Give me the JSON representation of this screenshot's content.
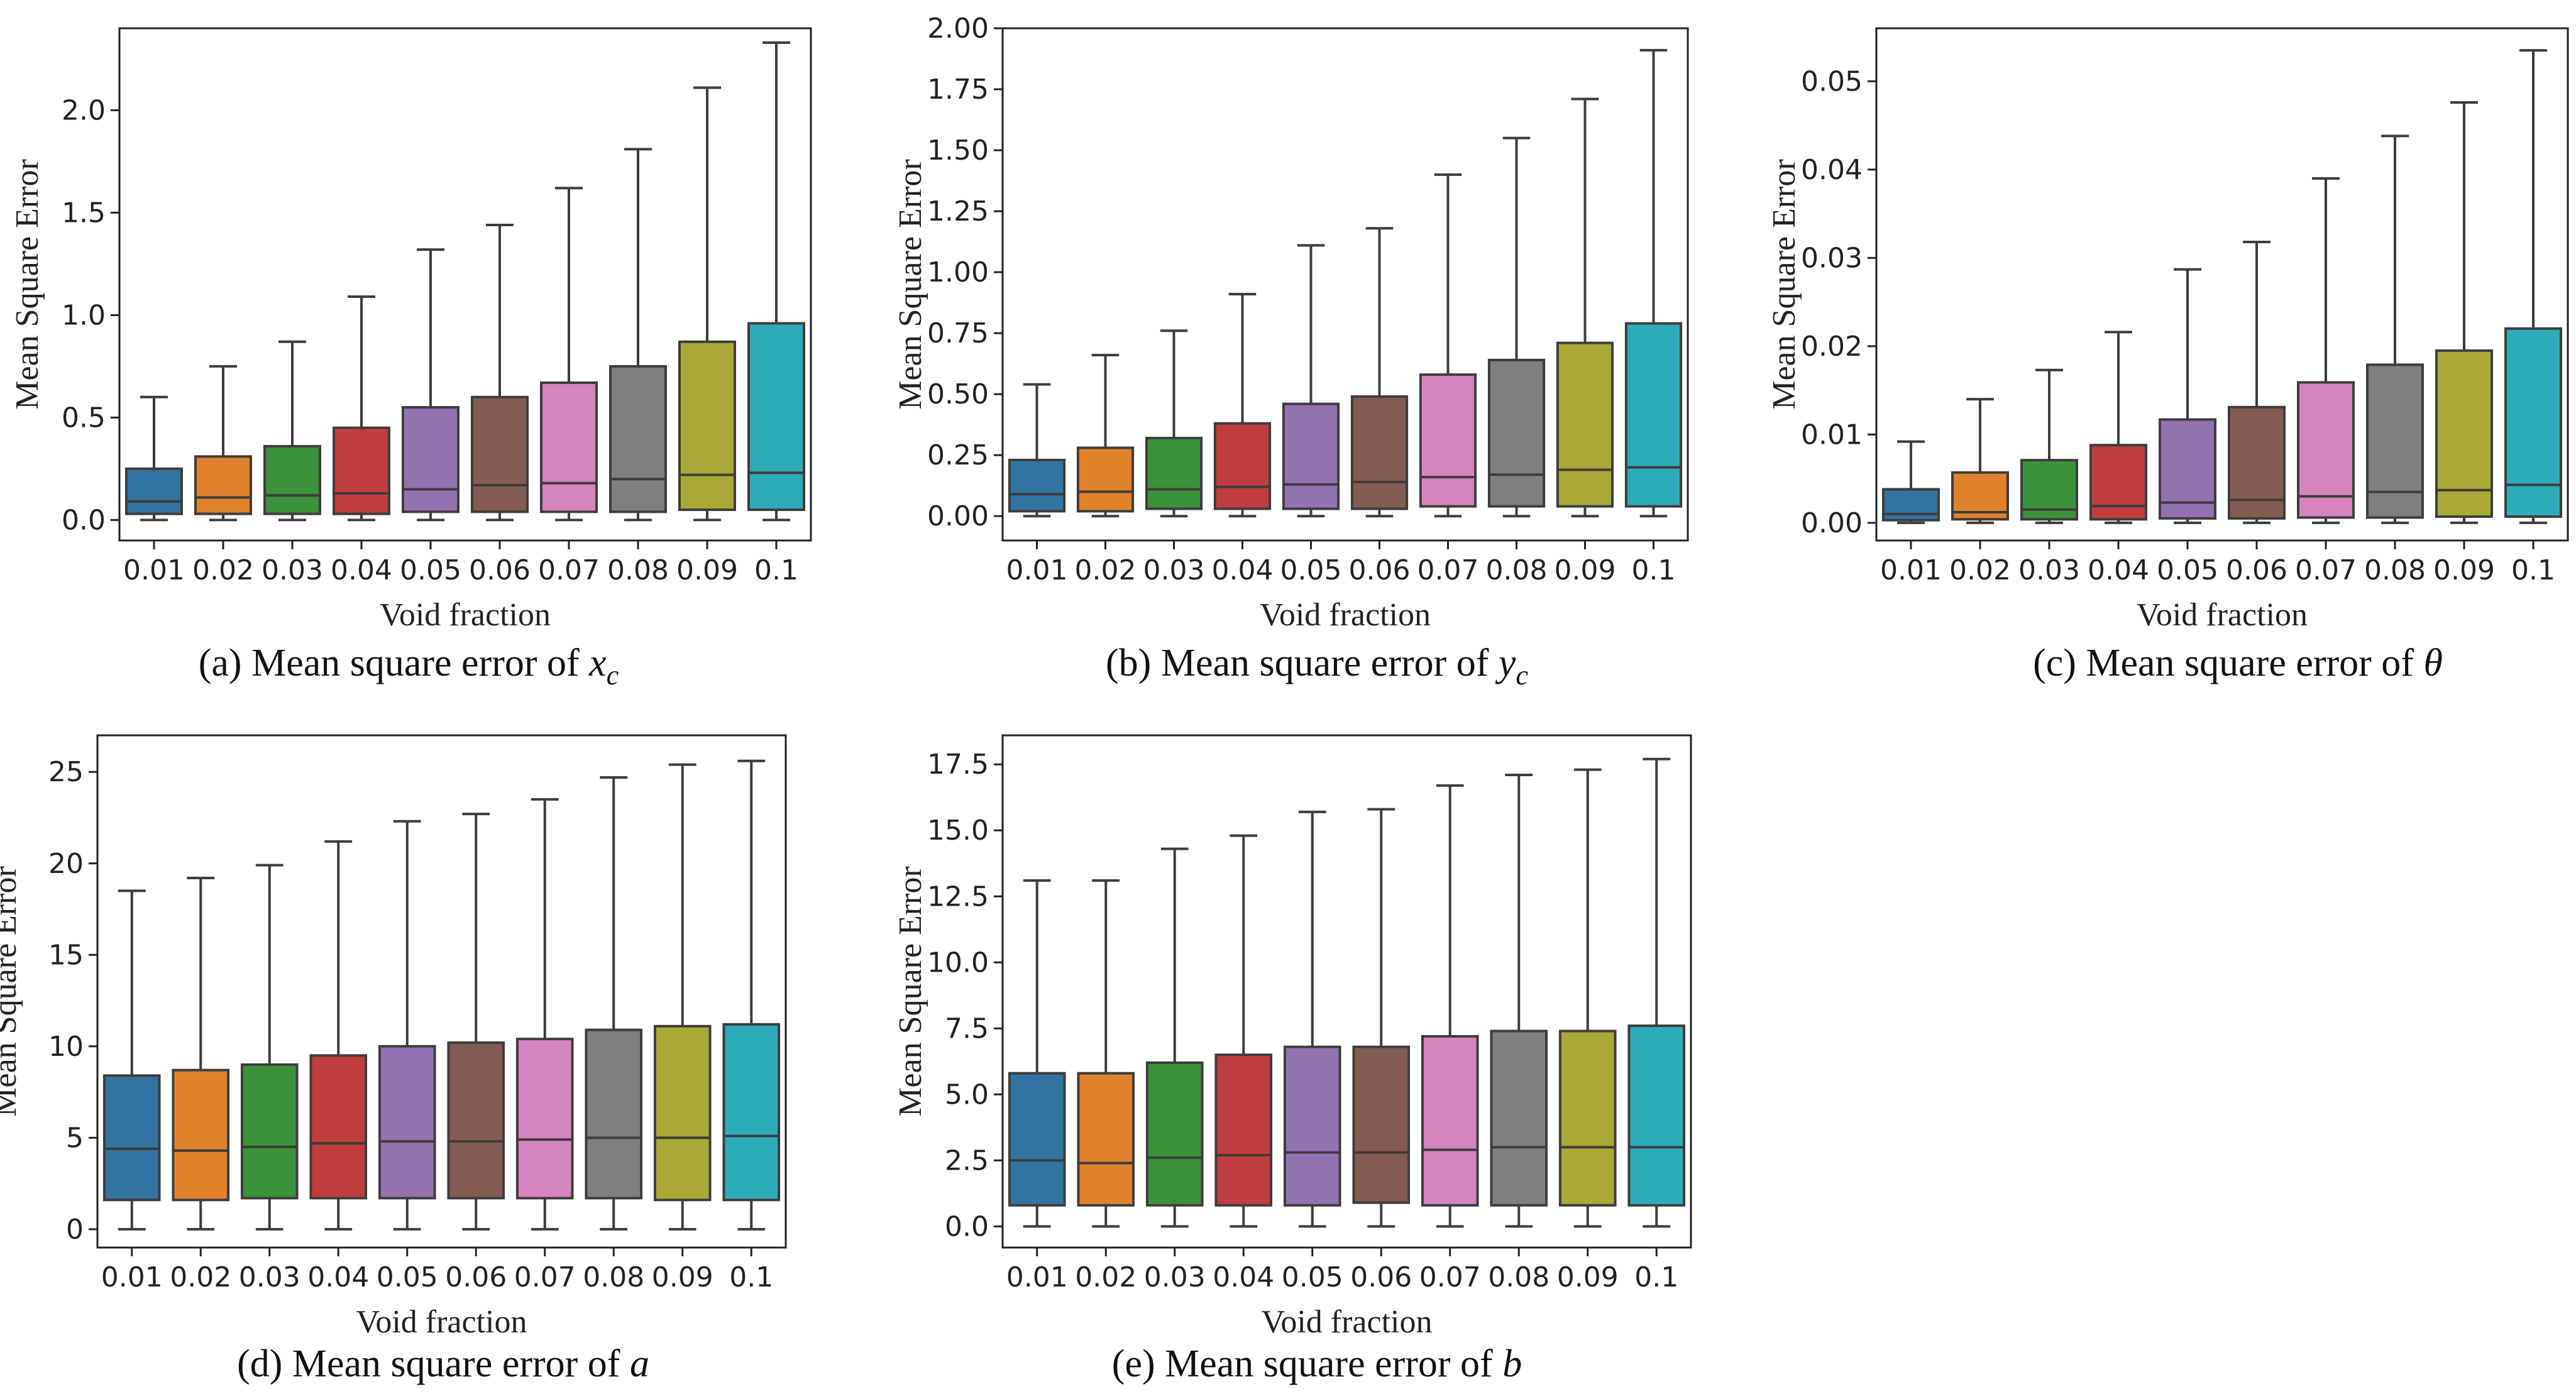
{
  "figure": {
    "categories_label": "Void fraction",
    "y_label_default": "Mean Square Error",
    "palette": [
      "#3274a1",
      "#e1812c",
      "#3a923a",
      "#c03d3e",
      "#9372b2",
      "#845b53",
      "#d684bd",
      "#7f7f7f",
      "#a9aa35",
      "#2eabb8"
    ]
  },
  "chart_data": [
    {
      "type": "box",
      "title": "",
      "caption_prefix": "(a) Mean square error of ",
      "caption_var": "x",
      "caption_sub": "c",
      "xlabel": "Void fraction",
      "ylabel": "Mean Square Error",
      "categories": [
        "0.01",
        "0.02",
        "0.03",
        "0.04",
        "0.05",
        "0.06",
        "0.07",
        "0.08",
        "0.09",
        "0.1"
      ],
      "ylim": [
        -0.1,
        2.4
      ],
      "yticks": [
        0.0,
        0.5,
        1.0,
        1.5,
        2.0
      ],
      "ytick_labels": [
        "0.0",
        "0.5",
        "1.0",
        "1.5",
        "2.0"
      ],
      "boxes": [
        {
          "min": 0.0,
          "q1": 0.03,
          "median": 0.09,
          "q3": 0.25,
          "max": 0.6
        },
        {
          "min": 0.0,
          "q1": 0.03,
          "median": 0.11,
          "q3": 0.31,
          "max": 0.75
        },
        {
          "min": 0.0,
          "q1": 0.03,
          "median": 0.12,
          "q3": 0.36,
          "max": 0.87
        },
        {
          "min": 0.0,
          "q1": 0.03,
          "median": 0.13,
          "q3": 0.45,
          "max": 1.09
        },
        {
          "min": 0.0,
          "q1": 0.04,
          "median": 0.15,
          "q3": 0.55,
          "max": 1.32
        },
        {
          "min": 0.0,
          "q1": 0.04,
          "median": 0.17,
          "q3": 0.6,
          "max": 1.44
        },
        {
          "min": 0.0,
          "q1": 0.04,
          "median": 0.18,
          "q3": 0.67,
          "max": 1.62
        },
        {
          "min": 0.0,
          "q1": 0.04,
          "median": 0.2,
          "q3": 0.75,
          "max": 1.81
        },
        {
          "min": 0.0,
          "q1": 0.05,
          "median": 0.22,
          "q3": 0.87,
          "max": 2.11
        },
        {
          "min": 0.0,
          "q1": 0.05,
          "median": 0.23,
          "q3": 0.96,
          "max": 2.33
        }
      ]
    },
    {
      "type": "box",
      "title": "",
      "caption_prefix": "(b) Mean square error of ",
      "caption_var": "y",
      "caption_sub": "c",
      "xlabel": "Void fraction",
      "ylabel": "Mean Square Error",
      "categories": [
        "0.01",
        "0.02",
        "0.03",
        "0.04",
        "0.05",
        "0.06",
        "0.07",
        "0.08",
        "0.09",
        "0.1"
      ],
      "ylim": [
        -0.1,
        2.0
      ],
      "yticks": [
        0.0,
        0.25,
        0.5,
        0.75,
        1.0,
        1.25,
        1.5,
        1.75,
        2.0
      ],
      "ytick_labels": [
        "0.00",
        "0.25",
        "0.50",
        "0.75",
        "1.00",
        "1.25",
        "1.50",
        "1.75",
        "2.00"
      ],
      "boxes": [
        {
          "min": 0.0,
          "q1": 0.02,
          "median": 0.09,
          "q3": 0.23,
          "max": 0.54
        },
        {
          "min": 0.0,
          "q1": 0.02,
          "median": 0.1,
          "q3": 0.28,
          "max": 0.66
        },
        {
          "min": 0.0,
          "q1": 0.03,
          "median": 0.11,
          "q3": 0.32,
          "max": 0.76
        },
        {
          "min": 0.0,
          "q1": 0.03,
          "median": 0.12,
          "q3": 0.38,
          "max": 0.91
        },
        {
          "min": 0.0,
          "q1": 0.03,
          "median": 0.13,
          "q3": 0.46,
          "max": 1.11
        },
        {
          "min": 0.0,
          "q1": 0.03,
          "median": 0.14,
          "q3": 0.49,
          "max": 1.18
        },
        {
          "min": 0.0,
          "q1": 0.04,
          "median": 0.16,
          "q3": 0.58,
          "max": 1.4
        },
        {
          "min": 0.0,
          "q1": 0.04,
          "median": 0.17,
          "q3": 0.64,
          "max": 1.55
        },
        {
          "min": 0.0,
          "q1": 0.04,
          "median": 0.19,
          "q3": 0.71,
          "max": 1.71
        },
        {
          "min": 0.0,
          "q1": 0.04,
          "median": 0.2,
          "q3": 0.79,
          "max": 1.91
        }
      ]
    },
    {
      "type": "box",
      "title": "",
      "caption_prefix": "(c) Mean square error of ",
      "caption_var": "θ",
      "caption_sub": "",
      "xlabel": "Void fraction",
      "ylabel": "Mean Square Error",
      "categories": [
        "0.01",
        "0.02",
        "0.03",
        "0.04",
        "0.05",
        "0.06",
        "0.07",
        "0.08",
        "0.09",
        "0.1"
      ],
      "ylim": [
        -0.002,
        0.056
      ],
      "yticks": [
        0.0,
        0.01,
        0.02,
        0.03,
        0.04,
        0.05
      ],
      "ytick_labels": [
        "0.00",
        "0.01",
        "0.02",
        "0.03",
        "0.04",
        "0.05"
      ],
      "boxes": [
        {
          "min": 0.0,
          "q1": 0.0003,
          "median": 0.001,
          "q3": 0.0038,
          "max": 0.0092
        },
        {
          "min": 0.0,
          "q1": 0.0004,
          "median": 0.0012,
          "q3": 0.0057,
          "max": 0.014
        },
        {
          "min": 0.0,
          "q1": 0.0004,
          "median": 0.0015,
          "q3": 0.0071,
          "max": 0.0173
        },
        {
          "min": 0.0,
          "q1": 0.0004,
          "median": 0.0019,
          "q3": 0.0088,
          "max": 0.0216
        },
        {
          "min": 0.0,
          "q1": 0.0005,
          "median": 0.0023,
          "q3": 0.0117,
          "max": 0.0287
        },
        {
          "min": 0.0,
          "q1": 0.0005,
          "median": 0.0026,
          "q3": 0.0131,
          "max": 0.0318
        },
        {
          "min": 0.0,
          "q1": 0.0006,
          "median": 0.003,
          "q3": 0.0159,
          "max": 0.039
        },
        {
          "min": 0.0,
          "q1": 0.0006,
          "median": 0.0035,
          "q3": 0.0179,
          "max": 0.0438
        },
        {
          "min": 0.0,
          "q1": 0.0007,
          "median": 0.0037,
          "q3": 0.0195,
          "max": 0.0476
        },
        {
          "min": 0.0,
          "q1": 0.0007,
          "median": 0.0043,
          "q3": 0.022,
          "max": 0.0535
        }
      ]
    },
    {
      "type": "box",
      "title": "",
      "caption_prefix": "(d) Mean square error of ",
      "caption_var": "a",
      "caption_sub": "",
      "xlabel": "Void fraction",
      "ylabel": "Mean Square Error",
      "categories": [
        "0.01",
        "0.02",
        "0.03",
        "0.04",
        "0.05",
        "0.06",
        "0.07",
        "0.08",
        "0.09",
        "0.1"
      ],
      "ylim": [
        -1.0,
        27.0
      ],
      "yticks": [
        0,
        5,
        10,
        15,
        20,
        25
      ],
      "ytick_labels": [
        "0",
        "5",
        "10",
        "15",
        "20",
        "25"
      ],
      "boxes": [
        {
          "min": 0.0,
          "q1": 1.6,
          "median": 4.4,
          "q3": 8.4,
          "max": 18.5
        },
        {
          "min": 0.0,
          "q1": 1.6,
          "median": 4.3,
          "q3": 8.7,
          "max": 19.2
        },
        {
          "min": 0.0,
          "q1": 1.7,
          "median": 4.5,
          "q3": 9.0,
          "max": 19.9
        },
        {
          "min": 0.0,
          "q1": 1.7,
          "median": 4.7,
          "q3": 9.5,
          "max": 21.2
        },
        {
          "min": 0.0,
          "q1": 1.7,
          "median": 4.8,
          "q3": 10.0,
          "max": 22.3
        },
        {
          "min": 0.0,
          "q1": 1.7,
          "median": 4.8,
          "q3": 10.2,
          "max": 22.7
        },
        {
          "min": 0.0,
          "q1": 1.7,
          "median": 4.9,
          "q3": 10.4,
          "max": 23.5
        },
        {
          "min": 0.0,
          "q1": 1.7,
          "median": 5.0,
          "q3": 10.9,
          "max": 24.7
        },
        {
          "min": 0.0,
          "q1": 1.6,
          "median": 5.0,
          "q3": 11.1,
          "max": 25.4
        },
        {
          "min": 0.0,
          "q1": 1.6,
          "median": 5.1,
          "q3": 11.2,
          "max": 25.6
        }
      ]
    },
    {
      "type": "box",
      "title": "",
      "caption_prefix": "(e) Mean square error of ",
      "caption_var": "b",
      "caption_sub": "",
      "xlabel": "Void fraction",
      "ylabel": "Mean Square Error",
      "categories": [
        "0.01",
        "0.02",
        "0.03",
        "0.04",
        "0.05",
        "0.06",
        "0.07",
        "0.08",
        "0.09",
        "0.1"
      ],
      "ylim": [
        -0.8,
        18.6
      ],
      "yticks": [
        0.0,
        2.5,
        5.0,
        7.5,
        10.0,
        12.5,
        15.0,
        17.5
      ],
      "ytick_labels": [
        "0.0",
        "2.5",
        "5.0",
        "7.5",
        "10.0",
        "12.5",
        "15.0",
        "17.5"
      ],
      "boxes": [
        {
          "min": 0.0,
          "q1": 0.8,
          "median": 2.5,
          "q3": 5.8,
          "max": 13.1
        },
        {
          "min": 0.0,
          "q1": 0.8,
          "median": 2.4,
          "q3": 5.8,
          "max": 13.1
        },
        {
          "min": 0.0,
          "q1": 0.8,
          "median": 2.6,
          "q3": 6.2,
          "max": 14.3
        },
        {
          "min": 0.0,
          "q1": 0.8,
          "median": 2.7,
          "q3": 6.5,
          "max": 14.8
        },
        {
          "min": 0.0,
          "q1": 0.8,
          "median": 2.8,
          "q3": 6.8,
          "max": 15.7
        },
        {
          "min": 0.0,
          "q1": 0.9,
          "median": 2.8,
          "q3": 6.8,
          "max": 15.8
        },
        {
          "min": 0.0,
          "q1": 0.8,
          "median": 2.9,
          "q3": 7.2,
          "max": 16.7
        },
        {
          "min": 0.0,
          "q1": 0.8,
          "median": 3.0,
          "q3": 7.4,
          "max": 17.1
        },
        {
          "min": 0.0,
          "q1": 0.8,
          "median": 3.0,
          "q3": 7.4,
          "max": 17.3
        },
        {
          "min": 0.0,
          "q1": 0.8,
          "median": 3.0,
          "q3": 7.6,
          "max": 17.7
        }
      ]
    }
  ]
}
